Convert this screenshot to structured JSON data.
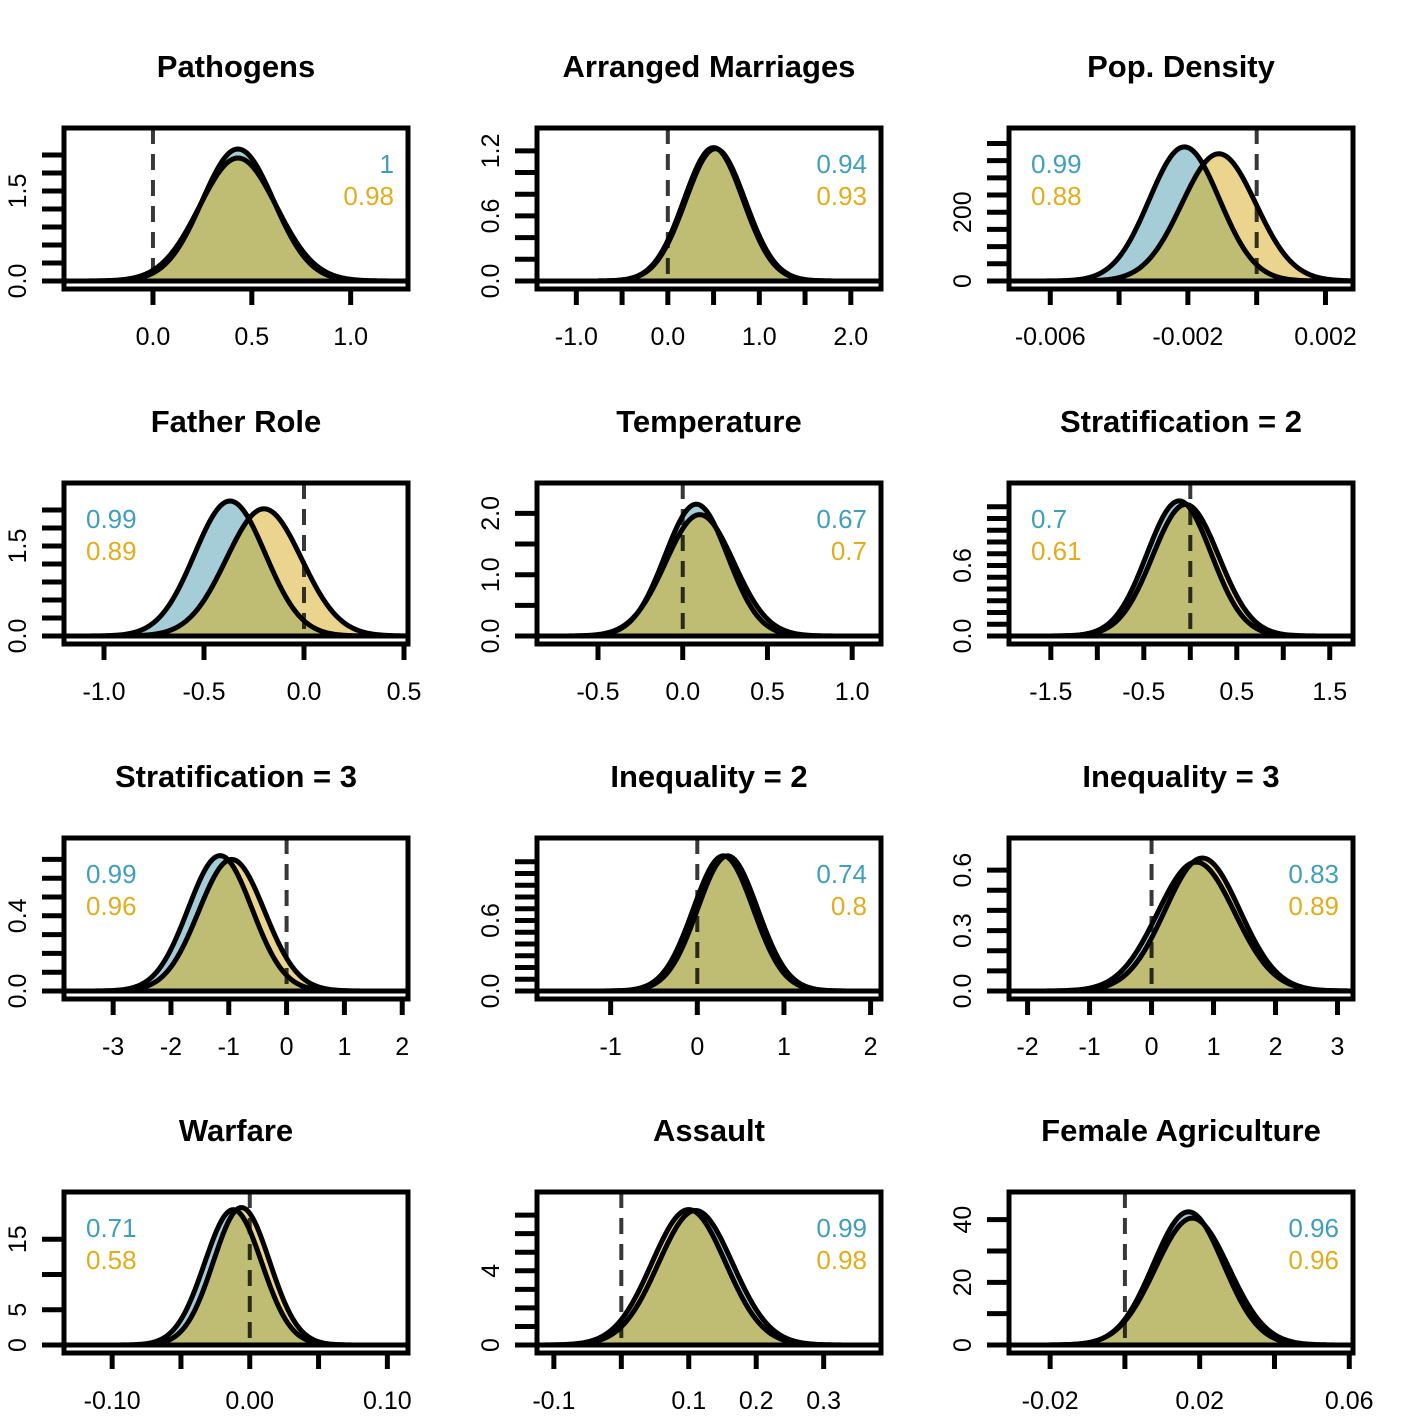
{
  "colors": {
    "blue_fill": "#a5cdd8",
    "gold_fill": "#ebd58e",
    "overlap_fill": "#bfbd73",
    "blue_text": "#3f9fbb",
    "gold_text": "#e1ad1c",
    "outline": "#000000"
  },
  "chart_data": [
    {
      "type": "area",
      "title": "Pathogens",
      "xlim": [
        -0.45,
        1.29
      ],
      "xticks": [
        0.0,
        0.5,
        1.0
      ],
      "xtick_labels": [
        "0.0",
        "0.5",
        "1.0"
      ],
      "ylim": [
        0,
        2.35
      ],
      "yticks": [
        0,
        0.3,
        0.6,
        0.9,
        1.2,
        1.5,
        1.8,
        2.1
      ],
      "ytick_labels": [
        "0.0",
        "",
        "",
        "",
        "",
        "1.5",
        "",
        ""
      ],
      "zero_line": 0.0,
      "series": [
        {
          "mean": 0.43,
          "peak": 2.2
        },
        {
          "mean": 0.43,
          "peak": 2.05
        }
      ],
      "probabilities": [
        "1",
        "0.98"
      ],
      "prob_position": "top-right"
    },
    {
      "type": "area",
      "title": "Arranged Marriages",
      "xlim": [
        -1.43,
        2.33
      ],
      "xticks": [
        -1.0,
        -0.5,
        0.0,
        0.5,
        1.0,
        1.5,
        2.0
      ],
      "xtick_labels": [
        "-1.0",
        "",
        "0.0",
        "",
        "1.0",
        "",
        "2.0"
      ],
      "ylim": [
        0,
        1.3
      ],
      "yticks": [
        0,
        0.2,
        0.4,
        0.6,
        0.8,
        1.0,
        1.2
      ],
      "ytick_labels": [
        "0.0",
        "",
        "",
        "0.6",
        "",
        "",
        "1.2"
      ],
      "zero_line": 0.0,
      "series": [
        {
          "mean": 0.5,
          "peak": 1.23
        },
        {
          "mean": 0.52,
          "peak": 1.22
        }
      ],
      "probabilities": [
        "0.94",
        "0.93"
      ],
      "prob_position": "top-right"
    },
    {
      "type": "area",
      "title": "Pop. Density",
      "xlim": [
        -0.0072,
        0.0028
      ],
      "xticks": [
        -0.006,
        -0.004,
        -0.002,
        0.0,
        0.002
      ],
      "xtick_labels": [
        "-0.006",
        "",
        "-0.002",
        "",
        "0.002"
      ],
      "ylim": [
        0,
        410
      ],
      "yticks": [
        0,
        50,
        100,
        150,
        200,
        250,
        300,
        350,
        400
      ],
      "ytick_labels": [
        "0",
        "",
        "",
        "",
        "200",
        "",
        "",
        "",
        ""
      ],
      "zero_line": 0.0,
      "series": [
        {
          "mean": -0.0021,
          "peak": 390
        },
        {
          "mean": -0.0011,
          "peak": 370
        }
      ],
      "probabilities": [
        "0.99",
        "0.88"
      ],
      "prob_position": "top-left"
    },
    {
      "type": "area",
      "title": "Father Role",
      "xlim": [
        -1.2,
        0.52
      ],
      "xticks": [
        -1.0,
        -0.5,
        0.0,
        0.5
      ],
      "xtick_labels": [
        "-1.0",
        "-0.5",
        "0.0",
        "0.5"
      ],
      "ylim": [
        0,
        2.35
      ],
      "yticks": [
        0,
        0.3,
        0.6,
        0.9,
        1.2,
        1.5,
        1.8,
        2.1
      ],
      "ytick_labels": [
        "0.0",
        "",
        "",
        "",
        "",
        "1.5",
        "",
        ""
      ],
      "zero_line": 0.0,
      "series": [
        {
          "mean": -0.37,
          "peak": 2.25
        },
        {
          "mean": -0.2,
          "peak": 2.12
        }
      ],
      "probabilities": [
        "0.99",
        "0.89"
      ],
      "prob_position": "top-left"
    },
    {
      "type": "area",
      "title": "Temperature",
      "xlim": [
        -0.86,
        1.17
      ],
      "xticks": [
        -0.5,
        0.0,
        0.5,
        1.0
      ],
      "xtick_labels": [
        "-0.5",
        "0.0",
        "0.5",
        "1.0"
      ],
      "ylim": [
        0,
        2.3
      ],
      "yticks": [
        0,
        0.5,
        1.0,
        1.5,
        2.0
      ],
      "ytick_labels": [
        "0.0",
        "",
        "1.0",
        "",
        "2.0"
      ],
      "zero_line": 0.0,
      "series": [
        {
          "mean": 0.08,
          "peak": 2.15
        },
        {
          "mean": 0.1,
          "peak": 1.98
        }
      ],
      "probabilities": [
        "0.67",
        "0.7"
      ],
      "prob_position": "top-right"
    },
    {
      "type": "area",
      "title": "Stratification = 2",
      "xlim": [
        -1.95,
        1.75
      ],
      "xticks": [
        -1.5,
        -1.0,
        -0.5,
        0.0,
        0.5,
        1.0,
        1.5
      ],
      "xtick_labels": [
        "-1.5",
        "",
        "-0.5",
        "",
        "0.5",
        "",
        "1.5"
      ],
      "ylim": [
        0,
        1.2
      ],
      "yticks": [
        0,
        0.1,
        0.2,
        0.3,
        0.4,
        0.5,
        0.6,
        0.7,
        0.8,
        0.9,
        1.0,
        1.1
      ],
      "ytick_labels": [
        "0.0",
        "",
        "",
        "",
        "",
        "",
        "0.6",
        "",
        "",
        "",
        "",
        ""
      ],
      "zero_line": 0.0,
      "series": [
        {
          "mean": -0.12,
          "peak": 1.15
        },
        {
          "mean": -0.05,
          "peak": 1.12
        }
      ],
      "probabilities": [
        "0.7",
        "0.61"
      ],
      "prob_position": "top-left"
    },
    {
      "type": "area",
      "title": "Stratification = 3",
      "xlim": [
        -3.85,
        2.1
      ],
      "xticks": [
        -3,
        -2,
        -1,
        0,
        1,
        2
      ],
      "xtick_labels": [
        "-3",
        "-2",
        "-1",
        "0",
        "1",
        "2"
      ],
      "ylim": [
        0,
        0.75
      ],
      "yticks": [
        0,
        0.1,
        0.2,
        0.3,
        0.4,
        0.5,
        0.6,
        0.7
      ],
      "ytick_labels": [
        "0.0",
        "",
        "",
        "",
        "0.4",
        "",
        "",
        ""
      ],
      "zero_line": 0.0,
      "series": [
        {
          "mean": -1.15,
          "peak": 0.72
        },
        {
          "mean": -0.95,
          "peak": 0.7
        }
      ],
      "probabilities": [
        "0.99",
        "0.96"
      ],
      "prob_position": "top-left"
    },
    {
      "type": "area",
      "title": "Inequality = 2",
      "xlim": [
        -1.85,
        2.12
      ],
      "xticks": [
        -1,
        0,
        1,
        2
      ],
      "xtick_labels": [
        "-1",
        "0",
        "1",
        "2"
      ],
      "ylim": [
        0,
        1.2
      ],
      "yticks": [
        0,
        0.1,
        0.2,
        0.3,
        0.4,
        0.5,
        0.6,
        0.7,
        0.8,
        0.9,
        1.0,
        1.1
      ],
      "ytick_labels": [
        "0.0",
        "",
        "",
        "",
        "",
        "",
        "0.6",
        "",
        "",
        "",
        "",
        ""
      ],
      "zero_line": 0.0,
      "series": [
        {
          "mean": 0.3,
          "peak": 1.15
        },
        {
          "mean": 0.35,
          "peak": 1.15
        }
      ],
      "probabilities": [
        "0.74",
        "0.8"
      ],
      "prob_position": "top-right"
    },
    {
      "type": "area",
      "title": "Inequality = 3",
      "xlim": [
        -2.3,
        3.25
      ],
      "xticks": [
        -2,
        -1,
        0,
        1,
        2,
        3
      ],
      "xtick_labels": [
        "-2",
        "-1",
        "0",
        "1",
        "2",
        "3"
      ],
      "ylim": [
        0,
        0.7
      ],
      "yticks": [
        0,
        0.1,
        0.2,
        0.3,
        0.4,
        0.5,
        0.6
      ],
      "ytick_labels": [
        "0.0",
        "",
        "",
        "0.3",
        "",
        "",
        "0.6"
      ],
      "zero_line": 0.0,
      "series": [
        {
          "mean": 0.72,
          "peak": 0.64
        },
        {
          "mean": 0.82,
          "peak": 0.66
        }
      ],
      "probabilities": [
        "0.83",
        "0.89"
      ],
      "prob_position": "top-right"
    },
    {
      "type": "area",
      "title": "Warfare",
      "xlim": [
        -0.135,
        0.115
      ],
      "xticks": [
        -0.1,
        -0.05,
        0.0,
        0.05,
        0.1
      ],
      "xtick_labels": [
        "-0.10",
        "",
        "0.00",
        "",
        "0.10"
      ],
      "ylim": [
        0,
        20
      ],
      "yticks": [
        0,
        5,
        10,
        15
      ],
      "ytick_labels": [
        "0",
        "5",
        "",
        "15"
      ],
      "zero_line": 0.0,
      "series": [
        {
          "mean": -0.012,
          "peak": 19.2
        },
        {
          "mean": -0.006,
          "peak": 19.5
        }
      ],
      "probabilities": [
        "0.71",
        "0.58"
      ],
      "prob_position": "top-left"
    },
    {
      "type": "area",
      "title": "Assault",
      "xlim": [
        -0.125,
        0.385
      ],
      "xticks": [
        -0.1,
        0.0,
        0.1,
        0.2,
        0.3
      ],
      "xtick_labels": [
        "-0.1",
        "",
        "0.1",
        "0.2",
        "0.3"
      ],
      "ylim": [
        0,
        7.6
      ],
      "yticks": [
        0,
        1,
        2,
        3,
        4,
        5,
        6,
        7
      ],
      "ytick_labels": [
        "0",
        "",
        "",
        "",
        "4",
        "",
        "",
        ""
      ],
      "zero_line": 0.0,
      "series": [
        {
          "mean": 0.11,
          "peak": 7.25
        },
        {
          "mean": 0.1,
          "peak": 7.3
        }
      ],
      "probabilities": [
        "0.99",
        "0.98"
      ],
      "prob_position": "top-right"
    },
    {
      "type": "area",
      "title": "Female Agriculture",
      "xlim": [
        -0.031,
        0.061
      ],
      "xticks": [
        -0.02,
        0.0,
        0.02,
        0.04,
        0.06
      ],
      "xtick_labels": [
        "-0.02",
        "",
        "0.02",
        "",
        "0.06"
      ],
      "ylim": [
        0,
        45
      ],
      "yticks": [
        0,
        10,
        20,
        30,
        40
      ],
      "ytick_labels": [
        "0",
        "",
        "20",
        "",
        "40"
      ],
      "zero_line": 0.0,
      "series": [
        {
          "mean": 0.017,
          "peak": 42.5
        },
        {
          "mean": 0.018,
          "peak": 40.5
        }
      ],
      "probabilities": [
        "0.96",
        "0.96"
      ],
      "prob_position": "top-right"
    }
  ]
}
